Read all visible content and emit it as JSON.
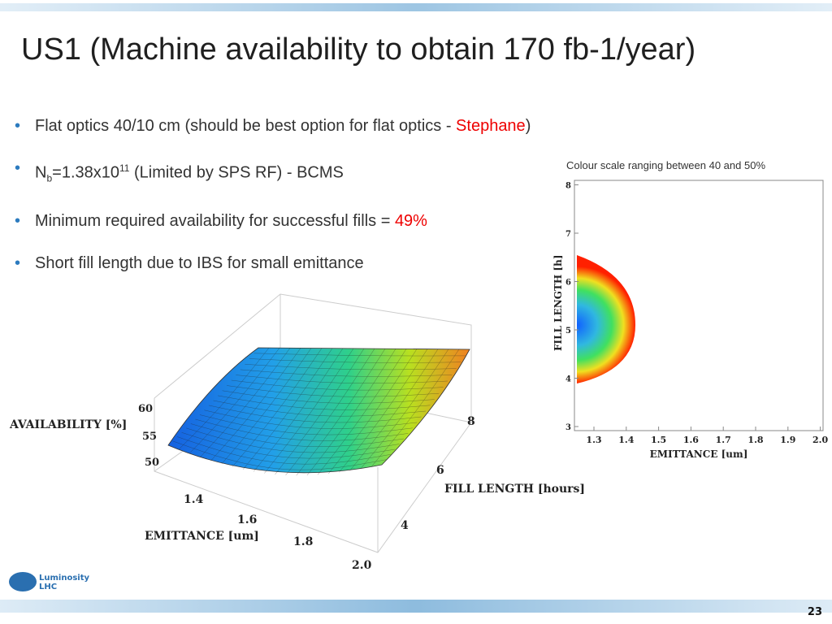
{
  "title": "US1 (Machine availability to obtain 170 fb-1/year)",
  "bullets": [
    {
      "parts": [
        "Flat optics 40/10 cm (should be best option for flat optics - ",
        "Stephane",
        ")"
      ]
    },
    {
      "parts": [
        "N",
        "b",
        "=1.38x10",
        "11",
        " (Limited by SPS RF) - BCMS"
      ]
    },
    {
      "parts": [
        "Minimum required availability for successful fills = ",
        "49%"
      ]
    },
    {
      "parts": [
        "Short fill length due to IBS for small emittance"
      ]
    }
  ],
  "surface_plot": {
    "z_label": "AVAILABILITY [%]",
    "z_ticks": [
      "50",
      "55",
      "60"
    ],
    "y_label": "FILL LENGTH [hours]",
    "y_ticks": [
      "4",
      "6",
      "8"
    ],
    "x_label": "EMITTANCE [um]",
    "x_ticks": [
      "1.4",
      "1.6",
      "1.8",
      "2.0"
    ]
  },
  "contour_plot": {
    "caption": "Colour scale ranging between 40 and 50%",
    "y_label": "FILL LENGTH [h]",
    "y_ticks": [
      "3",
      "4",
      "5",
      "6",
      "7",
      "8"
    ],
    "x_label": "EMITTANCE [um]",
    "x_ticks": [
      "1.3",
      "1.4",
      "1.5",
      "1.6",
      "1.7",
      "1.8",
      "1.9",
      "2.0"
    ]
  },
  "logo": {
    "line1": "Luminosity",
    "line2": "LHC"
  },
  "page_number": "23"
}
